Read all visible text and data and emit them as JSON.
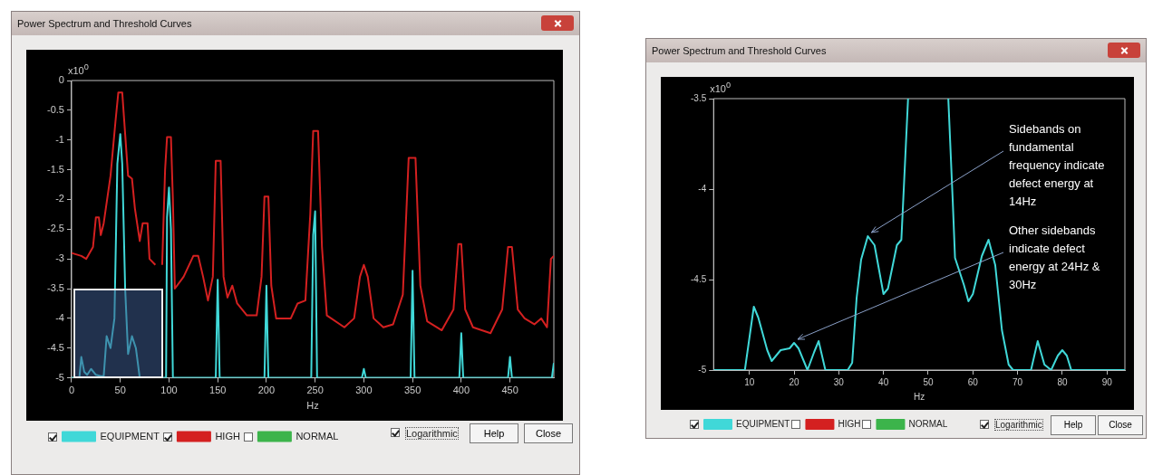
{
  "chart_data": [
    {
      "type": "line",
      "title": "Power Spectrum and Threshold Curves",
      "xlabel": "Hz",
      "ylabel": "x10$^{0}$",
      "xlim": [
        0,
        495
      ],
      "ylim": [
        -5,
        0
      ],
      "xticks": [
        0,
        50,
        100,
        150,
        200,
        250,
        300,
        350,
        400,
        450
      ],
      "yticks": [
        -5,
        -4.5,
        -4,
        -3.5,
        -3,
        -2.5,
        -2,
        -1.5,
        -1,
        -0.5,
        0
      ],
      "legend": "bottom",
      "annotations": [
        "Logarithmic",
        "Help",
        "Close"
      ],
      "series": [
        {
          "name": "EQUIPMENT",
          "color": "#40d8d8",
          "x": [
            0,
            8,
            10,
            13,
            16,
            20,
            25,
            30,
            33,
            36,
            40,
            44,
            47,
            50,
            52,
            55,
            58,
            62,
            66,
            70,
            97,
            98,
            100,
            102,
            104,
            148,
            150,
            152,
            198,
            200,
            202,
            246,
            248,
            250,
            252,
            298,
            300,
            302,
            348,
            350,
            352,
            398,
            400,
            402,
            448,
            450,
            452,
            493,
            495
          ],
          "values": [
            -5,
            -5,
            -4.65,
            -4.9,
            -4.95,
            -4.85,
            -4.95,
            -4.97,
            -4.97,
            -4.3,
            -4.5,
            -4.0,
            -1.4,
            -0.9,
            -1.4,
            -3.5,
            -4.6,
            -4.3,
            -4.5,
            -5,
            -5,
            -2.3,
            -1.8,
            -2.5,
            -5,
            -5,
            -3.35,
            -5,
            -5,
            -3.45,
            -5,
            -5,
            -2.6,
            -2.2,
            -5,
            -5,
            -4.85,
            -5,
            -5,
            -3.2,
            -5,
            -5,
            -4.25,
            -5,
            -5,
            -4.65,
            -5,
            -5,
            -4.75
          ]
        },
        {
          "name": "HIGH",
          "color": "#d42020",
          "x": [
            0,
            10,
            15,
            22,
            25,
            28,
            30,
            33,
            40,
            45,
            48,
            52,
            55,
            58,
            62,
            65,
            70,
            73,
            78,
            80,
            86,
            90,
            93,
            96,
            98,
            102,
            104,
            106,
            115,
            125,
            130,
            135,
            140,
            145,
            148,
            153,
            156,
            160,
            165,
            170,
            180,
            190,
            195,
            198,
            202,
            205,
            210,
            225,
            232,
            240,
            245,
            248,
            253,
            257,
            262,
            280,
            290,
            296,
            300,
            304,
            310,
            320,
            330,
            340,
            346,
            353,
            358,
            365,
            380,
            392,
            397,
            400,
            404,
            412,
            430,
            442,
            448,
            452,
            458,
            465,
            475,
            482,
            488,
            492,
            495
          ],
          "values": [
            -2.9,
            -2.95,
            -3.0,
            -2.8,
            -2.3,
            -2.3,
            -2.6,
            -2.4,
            -1.6,
            -0.7,
            -0.2,
            -0.2,
            -0.9,
            -1.6,
            -1.65,
            -2.15,
            -2.7,
            -2.4,
            -2.4,
            -3.0,
            -3.1,
            null,
            -3.1,
            -1.5,
            -0.95,
            -0.95,
            -2.0,
            -3.5,
            -3.3,
            -2.95,
            -2.95,
            -3.3,
            -3.7,
            -3.3,
            -1.35,
            -1.35,
            -3.3,
            -3.65,
            -3.45,
            -3.75,
            -3.95,
            -3.95,
            -3.3,
            -1.95,
            -1.95,
            -3.45,
            -4.0,
            -4.0,
            -3.75,
            -3.7,
            -2.25,
            -0.85,
            -0.85,
            -2.8,
            -3.95,
            -4.15,
            -4.0,
            -3.3,
            -3.1,
            -3.3,
            -4.0,
            -4.15,
            -4.1,
            -3.6,
            -1.3,
            -1.3,
            -3.45,
            -4.05,
            -4.2,
            -3.85,
            -2.75,
            -2.75,
            -3.85,
            -4.15,
            -4.25,
            -3.85,
            -2.8,
            -2.8,
            -3.85,
            -4.0,
            -4.1,
            -4.0,
            -4.15,
            -3.0,
            -2.95
          ]
        },
        {
          "name": "NORMAL",
          "color": "#3cb44b"
        }
      ]
    },
    {
      "type": "line",
      "title": "Power Spectrum and Threshold Curves",
      "xlabel": "Hz",
      "ylabel": "x10$^{0}$",
      "xlim": [
        2,
        94
      ],
      "ylim": [
        -5,
        -3.5
      ],
      "xticks": [
        10,
        20,
        30,
        40,
        50,
        60,
        70,
        80,
        90
      ],
      "yticks": [
        -5,
        -4.5,
        -4,
        -3.5
      ],
      "legend": "bottom",
      "annotations": [
        "Logarithmic",
        "Help",
        "Close",
        {
          "text": "Sidebands on fundamental frequency indicate defect energy at 14Hz",
          "x": 36.5,
          "y": -4.26
        },
        {
          "text": "Other sidebands indicate defect energy at 24Hz & 30Hz",
          "x": 20,
          "y": -4.85
        }
      ],
      "series": [
        {
          "name": "EQUIPMENT",
          "color": "#40d8d8",
          "x": [
            2,
            9,
            11,
            12,
            14,
            15,
            17,
            19,
            20,
            21,
            23,
            24.5,
            25.5,
            27,
            32,
            33,
            34,
            35,
            36.5,
            38,
            40,
            41,
            43,
            44,
            45.5,
            50,
            54.5,
            55.5,
            56,
            58,
            59,
            60,
            62,
            63.5,
            65,
            66.5,
            68,
            69,
            73,
            74.5,
            76,
            77.5,
            79,
            80,
            81,
            82,
            94
          ],
          "values": [
            -5,
            -5,
            -4.65,
            -4.71,
            -4.89,
            -4.95,
            -4.89,
            -4.88,
            -4.85,
            -4.88,
            -5,
            -4.9,
            -4.84,
            -5,
            -5,
            -4.96,
            -4.6,
            -4.39,
            -4.26,
            -4.31,
            -4.58,
            -4.55,
            -4.31,
            -4.28,
            -3.5,
            null,
            -3.5,
            -4.07,
            -4.38,
            -4.53,
            -4.62,
            -4.58,
            -4.37,
            -4.28,
            -4.42,
            -4.78,
            -4.97,
            -5,
            -5,
            -4.84,
            -4.97,
            -5,
            -4.92,
            -4.89,
            -4.92,
            -5,
            -5
          ]
        },
        {
          "name": "HIGH",
          "color": "#d42020"
        },
        {
          "name": "NORMAL",
          "color": "#3cb44b"
        }
      ]
    }
  ]
}
